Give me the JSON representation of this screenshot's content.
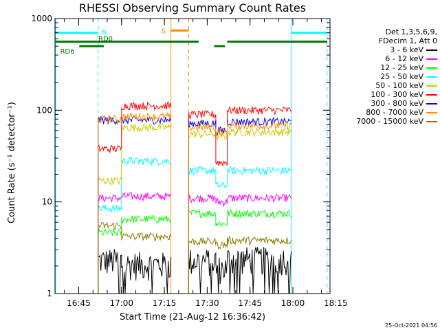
{
  "title": "RHESSI Observing Summary Count Rates",
  "ylabel": "Count Rate (s⁻¹ detector⁻¹)",
  "xlabel": "Start Time (21-Aug-12 16:36:42)",
  "timestamp": "25-Oct-2021 04:56",
  "legend": {
    "header": [
      "Det 1,3,5,6,9,",
      "FDecim 1, Att 0"
    ],
    "entries": [
      {
        "label": "3 - 6 keV",
        "color": "#000000"
      },
      {
        "label": "6 - 12 keV",
        "color": "#ff00ff"
      },
      {
        "label": "12 - 25 keV",
        "color": "#00ff00"
      },
      {
        "label": "25 - 50 keV",
        "color": "#00ffff"
      },
      {
        "label": "50 - 100 keV",
        "color": "#cccc00"
      },
      {
        "label": "100 - 300 keV",
        "color": "#ff0000"
      },
      {
        "label": "300 - 800 keV",
        "color": "#0000ff"
      },
      {
        "label": "800 - 7000 keV",
        "color": "#ff8c00"
      },
      {
        "label": "7000 - 15000 keV",
        "color": "#8b7d00"
      }
    ]
  },
  "annotations": {
    "n_label": "N",
    "s_label": "S",
    "rd0_label": "RD0",
    "rd6_label": "RD6"
  },
  "chart_data": {
    "type": "line",
    "title": "RHESSI Observing Summary Count Rates",
    "xlabel": "Start Time (21-Aug-12 16:36:42)",
    "ylabel": "Count Rate (s⁻¹ detector⁻¹)",
    "x_unit": "minutes of day",
    "xlim": [
      996.7,
      1093
    ],
    "ylim": [
      1,
      1000
    ],
    "yscale": "log",
    "x_ticks": [
      {
        "value": 1005,
        "label": "16:45"
      },
      {
        "value": 1020,
        "label": "17:00"
      },
      {
        "value": 1035,
        "label": "17:15"
      },
      {
        "value": 1050,
        "label": "17:30"
      },
      {
        "value": 1065,
        "label": "17:45"
      },
      {
        "value": 1080,
        "label": "18:00"
      },
      {
        "value": 1095,
        "label": "18:15"
      }
    ],
    "y_ticks": [
      {
        "value": 1,
        "label": "1"
      },
      {
        "value": 10,
        "label": "10"
      },
      {
        "value": 100,
        "label": "100"
      },
      {
        "value": 1000,
        "label": "1000"
      }
    ],
    "data_segments": [
      [
        1011.8,
        1037.3
      ],
      [
        1043.5,
        1079.5
      ]
    ],
    "breakpoints": [
      1011.8,
      1020.0,
      1037.3,
      1043.5,
      1053.0,
      1057.0,
      1079.5
    ],
    "series": [
      {
        "name": "3 - 6 keV",
        "color": "#000000",
        "levels": [
          2.3,
          2.1,
          null,
          2.3,
          1.9,
          2.4,
          null
        ]
      },
      {
        "name": "6 - 12 keV",
        "color": "#ff00ff",
        "levels": [
          11,
          11.5,
          null,
          11,
          10,
          11,
          null
        ]
      },
      {
        "name": "12 - 25 keV",
        "color": "#00ff00",
        "levels": [
          4.6,
          6.5,
          null,
          7.5,
          5.8,
          7.5,
          null
        ]
      },
      {
        "name": "25 - 50 keV",
        "color": "#00ffff",
        "levels": [
          8.5,
          28,
          null,
          22,
          15,
          22,
          null
        ]
      },
      {
        "name": "50 - 100 keV",
        "color": "#cccc00",
        "levels": [
          17,
          65,
          null,
          55,
          52,
          58,
          null
        ]
      },
      {
        "name": "100 - 300 keV",
        "color": "#ff0000",
        "levels": [
          38,
          112,
          null,
          90,
          27,
          100,
          null
        ]
      },
      {
        "name": "300 - 800 keV",
        "color": "#0000ff",
        "levels": [
          78,
          78,
          null,
          72,
          60,
          75,
          null
        ]
      },
      {
        "name": "800 - 7000 keV",
        "color": "#ff8c00",
        "levels": [
          80,
          85,
          null,
          65,
          58,
          68,
          null
        ]
      },
      {
        "name": "7000 - 15000 keV",
        "color": "#8b7d00",
        "levels": [
          5.5,
          4.2,
          null,
          3.7,
          3.4,
          3.8,
          null
        ]
      }
    ],
    "vertical_lines": [
      {
        "x": 996.9,
        "color": "#00ffff",
        "style": "solid"
      },
      {
        "x": 1011.8,
        "color": "#00ffff",
        "style": "dashed"
      },
      {
        "x": 1037.3,
        "color": "#ff8c00",
        "style": "solid"
      },
      {
        "x": 1043.5,
        "color": "#ff8c00",
        "style": "dashed"
      },
      {
        "x": 1079.5,
        "color": "#00ffff",
        "style": "solid"
      },
      {
        "x": 1092.0,
        "color": "#00ffff",
        "style": "dashed"
      }
    ],
    "flag_bars": [
      {
        "color": "#00ffff",
        "segments": [
          [
            996.9,
            1011.8
          ],
          [
            1079.5,
            1092.0
          ]
        ],
        "y": 700
      },
      {
        "color": "#ff8c00",
        "segments": [
          [
            1037.3,
            1043.5
          ]
        ],
        "y": 740
      },
      {
        "color": "#007700",
        "segments": [
          [
            996.9,
            1047.0
          ],
          [
            1057.0,
            1092.0
          ]
        ],
        "y": 560
      },
      {
        "color": "#007700",
        "segments": [
          [
            1005.2,
            1013.8
          ],
          [
            1052.4,
            1056.2
          ]
        ],
        "y": 500
      }
    ]
  }
}
